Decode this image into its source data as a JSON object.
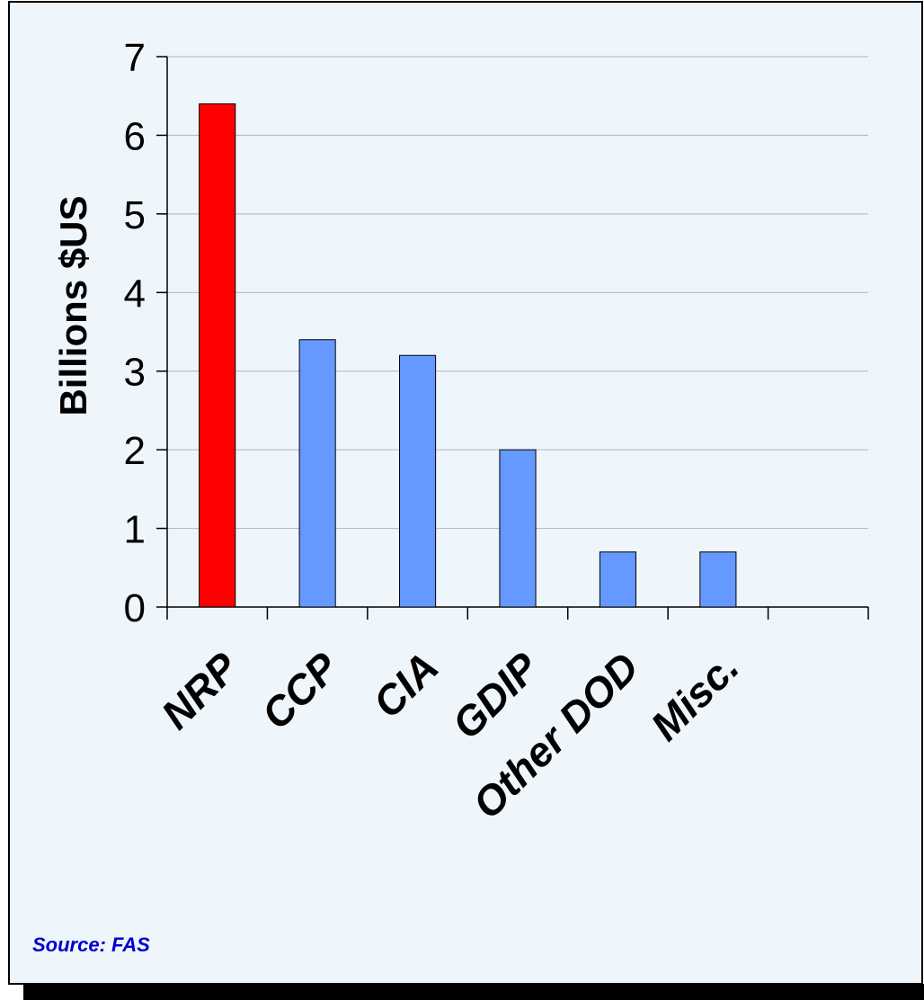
{
  "chart_data": {
    "type": "bar",
    "categories": [
      "NRP",
      "CCP",
      "CIA",
      "GDIP",
      "Other DOD",
      "Misc.",
      ""
    ],
    "values": [
      6.4,
      3.4,
      3.2,
      2.0,
      0.7,
      0.7,
      null
    ],
    "highlight_index": 0,
    "title": "",
    "xlabel": "",
    "ylabel": "Billions $US",
    "ylim": [
      0,
      7
    ],
    "yticks": [
      0,
      1,
      2,
      3,
      4,
      5,
      6,
      7
    ],
    "grid": true,
    "legend": "none"
  },
  "footer": {
    "source": "Source:  FAS"
  },
  "colors": {
    "background": "#eef6fc",
    "bar": "#6699ff",
    "highlight_bar": "#ff0000",
    "grid": "#b4b4b4",
    "source_text": "#0000cc",
    "shadow": "#000000"
  }
}
